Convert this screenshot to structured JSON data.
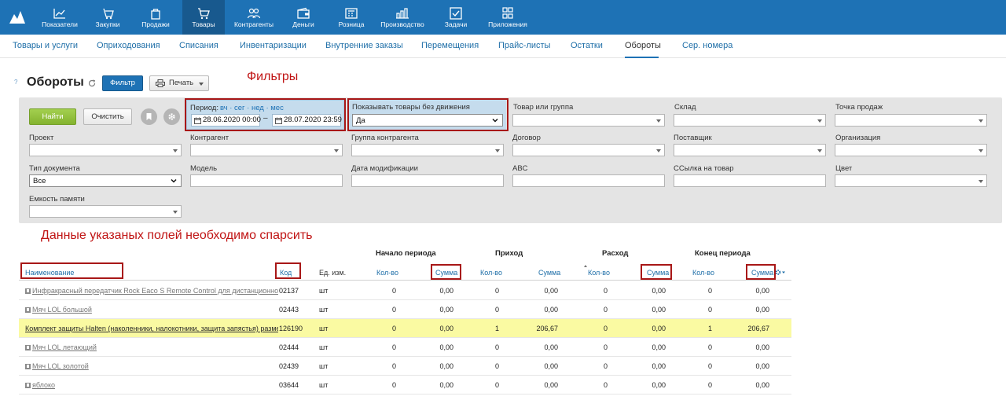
{
  "topnav": {
    "items": [
      {
        "label": "Показатели",
        "icon": "chart-icon"
      },
      {
        "label": "Закупки",
        "icon": "basket-icon"
      },
      {
        "label": "Продажи",
        "icon": "bag-icon"
      },
      {
        "label": "Товары",
        "icon": "cart-icon",
        "active": true
      },
      {
        "label": "Контрагенты",
        "icon": "people-icon"
      },
      {
        "label": "Деньги",
        "icon": "wallet-icon"
      },
      {
        "label": "Розница",
        "icon": "register-icon"
      },
      {
        "label": "Производство",
        "icon": "factory-icon"
      },
      {
        "label": "Задачи",
        "icon": "task-icon"
      },
      {
        "label": "Приложения",
        "icon": "apps-icon"
      }
    ]
  },
  "subnav": {
    "items": [
      {
        "label": "Товары и услуги"
      },
      {
        "label": "Оприходования"
      },
      {
        "label": "Списания"
      },
      {
        "label": "Инвентаризации"
      },
      {
        "label": "Внутренние заказы"
      },
      {
        "label": "Перемещения"
      },
      {
        "label": "Прайс-листы"
      },
      {
        "label": "Остатки"
      },
      {
        "label": "Обороты",
        "active": true
      },
      {
        "label": "Сер. номера"
      }
    ]
  },
  "page": {
    "help": "?",
    "title": "Обороты",
    "filter_button": "Фильтр",
    "print_button": "Печать"
  },
  "annotations": {
    "filters": "Фильтры",
    "parse_fields": "Данные указаных полей необходимо спарсить"
  },
  "filters": {
    "find_button": "Найти",
    "clear_button": "Очистить",
    "period": {
      "label": "Период:",
      "quick_links": "вч · сег · нед · мес",
      "from": "28.06.2020 00:00",
      "dash": "–",
      "to": "28.07.2020 23:59"
    },
    "no_activity": {
      "label": "Показывать товары без движения",
      "value": "Да"
    },
    "product_or_group": "Товар или группа",
    "warehouse": "Склад",
    "point_of_sale": "Точка продаж",
    "project": "Проект",
    "counterparty": "Контрагент",
    "counterparty_group": "Группа контрагента",
    "contract": "Договор",
    "supplier": "Поставщик",
    "organization": "Организация",
    "doc_type": {
      "label": "Тип документа",
      "value": "Все"
    },
    "model": "Модель",
    "modified_date": "Дата модификации",
    "abc": "ABC",
    "product_link": "ССылка на товар",
    "color": "Цвет",
    "memory": "Емкость памяти"
  },
  "table": {
    "groups": {
      "start": "Начало периода",
      "income": "Приход",
      "expense": "Расход",
      "end": "Конец периода"
    },
    "columns": {
      "name": "Наименование",
      "code": "Код",
      "unit": "Ед. изм.",
      "start_qty": "Кол-во",
      "start_sum": "Сумма",
      "in_qty": "Кол-во",
      "in_sum": "Сумма",
      "out_qty": "Кол-во",
      "out_sum": "Сумма",
      "end_qty": "Кол-во",
      "end_sum": "Сумма"
    },
    "rows": [
      {
        "name": "Инфракрасный передатчик Rock Eaco S Remote Control для дистанционного управления",
        "code": "02137",
        "unit": "шт",
        "start_qty": "0",
        "start_sum": "0,00",
        "in_qty": "0",
        "in_sum": "0,00",
        "out_qty": "0",
        "out_sum": "0,00",
        "end_qty": "0",
        "end_sum": "0,00"
      },
      {
        "name": "Мяч LOL большой",
        "code": "02443",
        "unit": "шт",
        "start_qty": "0",
        "start_sum": "0,00",
        "in_qty": "0",
        "in_sum": "0,00",
        "out_qty": "0",
        "out_sum": "0,00",
        "end_qty": "0",
        "end_sum": "0,00"
      },
      {
        "name": "Комплект защиты Halten (наколенники, налокотники, защита запястья) размер",
        "code": "126190",
        "unit": "шт",
        "start_qty": "0",
        "start_sum": "0,00",
        "in_qty": "1",
        "in_sum": "206,67",
        "out_qty": "0",
        "out_sum": "0,00",
        "end_qty": "1",
        "end_sum": "206,67",
        "highlight": true
      },
      {
        "name": "Мяч LOL летающий",
        "code": "02444",
        "unit": "шт",
        "start_qty": "0",
        "start_sum": "0,00",
        "in_qty": "0",
        "in_sum": "0,00",
        "out_qty": "0",
        "out_sum": "0,00",
        "end_qty": "0",
        "end_sum": "0,00"
      },
      {
        "name": "Мяч LOL золотой",
        "code": "02439",
        "unit": "шт",
        "start_qty": "0",
        "start_sum": "0,00",
        "in_qty": "0",
        "in_sum": "0,00",
        "out_qty": "0",
        "out_sum": "0,00",
        "end_qty": "0",
        "end_sum": "0,00"
      },
      {
        "name": "яблоко",
        "code": "03644",
        "unit": "шт",
        "start_qty": "0",
        "start_sum": "0,00",
        "in_qty": "0",
        "in_sum": "0,00",
        "out_qty": "0",
        "out_sum": "0,00",
        "end_qty": "0",
        "end_sum": "0,00"
      }
    ]
  }
}
